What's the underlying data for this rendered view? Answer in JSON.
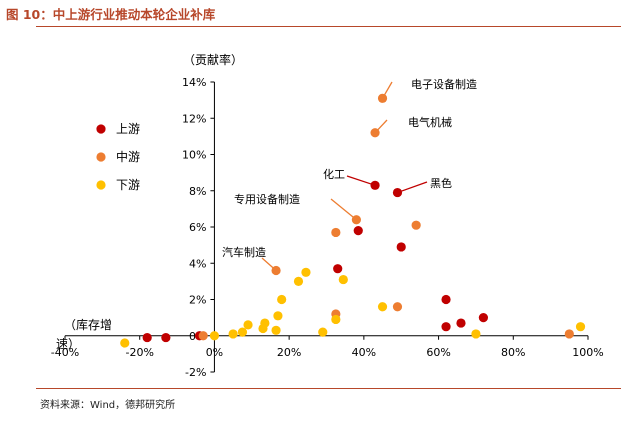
{
  "figure": {
    "title": "图 10：中上游行业推动本轮企业补库",
    "source": "资料来源：Wind，德邦研究所"
  },
  "colors": {
    "upstream": "#c00000",
    "midstream": "#ed7d31",
    "downstream": "#ffc000",
    "header_accent": "#b7472a",
    "axis": "#000000"
  },
  "chart_data": {
    "type": "scatter",
    "ylabel": "（贡献率）",
    "xlabel": "（库存增速）",
    "xlim": [
      -0.4,
      1.0
    ],
    "ylim": [
      -0.02,
      0.14
    ],
    "x_ticks": [
      -0.4,
      -0.2,
      0.0,
      0.2,
      0.4,
      0.6,
      0.8,
      1.0
    ],
    "x_tick_labels": [
      "-40%",
      "-20%",
      "0%",
      "20%",
      "40%",
      "60%",
      "80%",
      "100%"
    ],
    "y_ticks": [
      -0.02,
      0.0,
      0.02,
      0.04,
      0.06,
      0.08,
      0.1,
      0.12,
      0.14
    ],
    "y_tick_labels": [
      "-2%",
      "0%",
      "2%",
      "4%",
      "6%",
      "8%",
      "10%",
      "12%",
      "14%"
    ],
    "grid": false,
    "legend_position": "left",
    "series": [
      {
        "name": "上游",
        "color": "#c00000",
        "points": [
          [
            -0.18,
            -0.001
          ],
          [
            -0.13,
            -0.001
          ],
          [
            -0.04,
            0.0
          ],
          [
            0.33,
            0.037
          ],
          [
            0.385,
            0.058
          ],
          [
            0.43,
            0.083
          ],
          [
            0.49,
            0.079
          ],
          [
            0.5,
            0.049
          ],
          [
            0.62,
            0.02
          ],
          [
            0.62,
            0.005
          ],
          [
            0.66,
            0.007
          ],
          [
            0.72,
            0.01
          ]
        ]
      },
      {
        "name": "中游",
        "color": "#ed7d31",
        "points": [
          [
            -0.03,
            0.0
          ],
          [
            0.165,
            0.036
          ],
          [
            0.325,
            0.057
          ],
          [
            0.325,
            0.012
          ],
          [
            0.38,
            0.064
          ],
          [
            0.43,
            0.112
          ],
          [
            0.45,
            0.131
          ],
          [
            0.49,
            0.016
          ],
          [
            0.54,
            0.061
          ],
          [
            0.95,
            0.001
          ]
        ]
      },
      {
        "name": "下游",
        "color": "#ffc000",
        "points": [
          [
            -0.24,
            -0.004
          ],
          [
            0.0,
            0.0
          ],
          [
            0.05,
            0.001
          ],
          [
            0.075,
            0.002
          ],
          [
            0.09,
            0.006
          ],
          [
            0.13,
            0.004
          ],
          [
            0.135,
            0.007
          ],
          [
            0.165,
            0.003
          ],
          [
            0.17,
            0.011
          ],
          [
            0.18,
            0.02
          ],
          [
            0.225,
            0.03
          ],
          [
            0.245,
            0.035
          ],
          [
            0.29,
            0.002
          ],
          [
            0.325,
            0.009
          ],
          [
            0.345,
            0.031
          ],
          [
            0.45,
            0.016
          ],
          [
            0.7,
            0.001
          ],
          [
            0.98,
            0.005
          ]
        ]
      }
    ],
    "annotations": [
      {
        "text": "电子设备制造",
        "point": [
          0.45,
          0.131
        ]
      },
      {
        "text": "电气机械",
        "point": [
          0.43,
          0.112
        ]
      },
      {
        "text": "化工",
        "point": [
          0.43,
          0.083
        ]
      },
      {
        "text": "黑色",
        "point": [
          0.49,
          0.079
        ]
      },
      {
        "text": "专用设备制造",
        "point": [
          0.38,
          0.064
        ]
      },
      {
        "text": "汽车制造",
        "point": [
          0.165,
          0.036
        ]
      }
    ]
  }
}
